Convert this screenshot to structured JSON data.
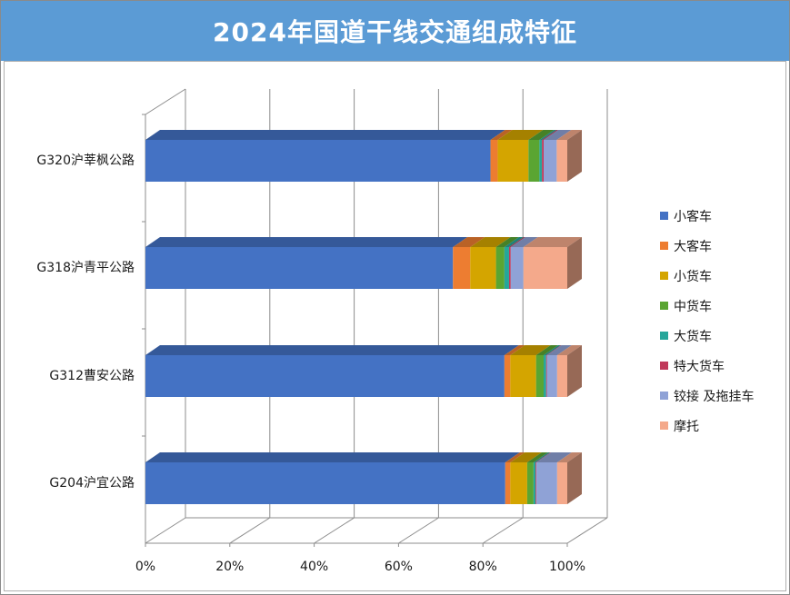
{
  "title": "2024年国道干线交通组成特征",
  "chart_data": {
    "type": "bar",
    "orientation": "horizontal",
    "stacked": "percent",
    "style": "3d",
    "title": "2024年国道干线交通组成特征",
    "categories": [
      "G320沪莘枫公路",
      "G318沪青平公路",
      "G312曹安公路",
      "G204沪宜公路"
    ],
    "xlim": [
      0,
      100
    ],
    "xticks": [
      "0%",
      "20%",
      "40%",
      "60%",
      "80%",
      "100%"
    ],
    "grid": true,
    "legend_position": "right",
    "series": [
      {
        "name": "小客车",
        "color": "#4472c4",
        "values": [
          81.8,
          72.9,
          85.1,
          85.3
        ]
      },
      {
        "name": "大客车",
        "color": "#ed7d31",
        "values": [
          1.7,
          4.1,
          1.4,
          1.2
        ]
      },
      {
        "name": "小货车",
        "color": "#d4a500",
        "values": [
          7.3,
          6.1,
          6.1,
          4.0
        ]
      },
      {
        "name": "中货车",
        "color": "#5aa532",
        "values": [
          2.6,
          2.0,
          1.8,
          1.5
        ]
      },
      {
        "name": "大货车",
        "color": "#26a69a",
        "values": [
          0.6,
          1.1,
          0.6,
          0.5
        ]
      },
      {
        "name": "特大货车",
        "color": "#c0395a",
        "values": [
          0.4,
          0.4,
          0.2,
          0.2
        ]
      },
      {
        "name": "铰接 及拖挂车",
        "color": "#8fa2d6",
        "values": [
          3.1,
          3.0,
          2.4,
          4.9
        ]
      },
      {
        "name": "摩托",
        "color": "#f4a98b",
        "values": [
          2.5,
          10.4,
          2.4,
          2.4
        ]
      }
    ]
  }
}
